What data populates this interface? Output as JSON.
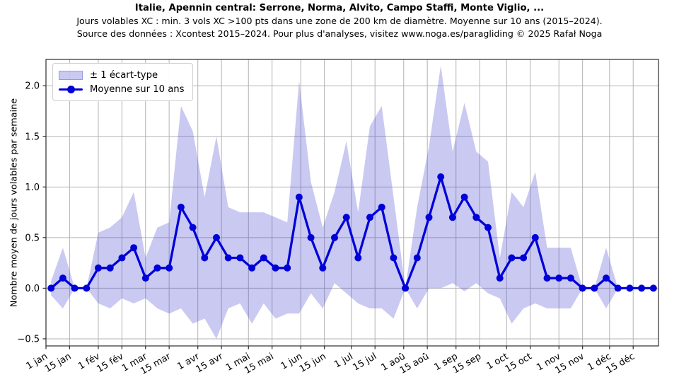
{
  "header": {
    "title": "Italie, Apennin central: Serrone, Norma, Alvito, Campo Staffi, Monte Viglio, ...",
    "subtitle_line1": "Jours volables XC : min. 3 vols XC >100 pts dans une zone de 200 km de diamètre. Moyenne sur 10 ans (2015–2024).",
    "subtitle_line2": "Source des données : Xcontest 2015–2024. Pour plus d'analyses, visitez www.noga.es/paragliding © 2025 Rafał Noga"
  },
  "chart_data": {
    "type": "line",
    "title": "Italie, Apennin central: Serrone, Norma, Alvito, Campo Staffi, Monte Viglio, ...",
    "xlabel": "",
    "ylabel": "Nombre moyen de jours volables par semaine",
    "legend": {
      "position": "upper left",
      "band_label": "± 1 écart-type",
      "line_label": "Moyenne sur 10 ans"
    },
    "grid": true,
    "ylim": [
      -0.57,
      2.26
    ],
    "xlim_days": [
      1,
      364
    ],
    "y_ticks": [
      -0.5,
      0.0,
      0.5,
      1.0,
      1.5,
      2.0
    ],
    "y_tick_labels": [
      "−0.5",
      "0.0",
      "0.5",
      "1.0",
      "1.5",
      "2.0"
    ],
    "x_ticks": [
      {
        "label": "1 jan",
        "day": 1
      },
      {
        "label": "15 jan",
        "day": 15
      },
      {
        "label": "1 fév",
        "day": 32
      },
      {
        "label": "15 fév",
        "day": 46
      },
      {
        "label": "1 mar",
        "day": 60
      },
      {
        "label": "15 mar",
        "day": 74
      },
      {
        "label": "1 avr",
        "day": 91
      },
      {
        "label": "15 avr",
        "day": 105
      },
      {
        "label": "1 mai",
        "day": 121
      },
      {
        "label": "15 mai",
        "day": 135
      },
      {
        "label": "1 jun",
        "day": 152
      },
      {
        "label": "15 jun",
        "day": 166
      },
      {
        "label": "1 jul",
        "day": 182
      },
      {
        "label": "15 jul",
        "day": 196
      },
      {
        "label": "1 aoû",
        "day": 213
      },
      {
        "label": "15 aoû",
        "day": 227
      },
      {
        "label": "1 sep",
        "day": 244
      },
      {
        "label": "15 sep",
        "day": 258
      },
      {
        "label": "1 oct",
        "day": 274
      },
      {
        "label": "15 oct",
        "day": 288
      },
      {
        "label": "1 nov",
        "day": 305
      },
      {
        "label": "15 nov",
        "day": 319
      },
      {
        "label": "1 déc",
        "day": 335
      },
      {
        "label": "15 déc",
        "day": 349
      }
    ],
    "week_start_day": 4,
    "week_step_days": 7,
    "series": [
      {
        "name": "Moyenne sur 10 ans",
        "type": "line+marker",
        "color": "#0000d8",
        "values": [
          0.0,
          0.1,
          0.0,
          0.0,
          0.2,
          0.2,
          0.3,
          0.4,
          0.1,
          0.2,
          0.2,
          0.8,
          0.6,
          0.3,
          0.5,
          0.3,
          0.3,
          0.2,
          0.3,
          0.2,
          0.2,
          0.9,
          0.5,
          0.2,
          0.5,
          0.7,
          0.3,
          0.7,
          0.8,
          0.3,
          0.0,
          0.3,
          0.7,
          1.1,
          0.7,
          0.9,
          0.7,
          0.6,
          0.1,
          0.3,
          0.3,
          0.5,
          0.1,
          0.1,
          0.1,
          0.0,
          0.0,
          0.1,
          0.0,
          0.0,
          0.0,
          0.0
        ]
      },
      {
        "name": "± 1 écart-type",
        "type": "band",
        "color": "#3c3cd2",
        "opacity": 0.28,
        "std": [
          0.07,
          0.3,
          0.0,
          0.0,
          0.35,
          0.4,
          0.4,
          0.55,
          0.2,
          0.4,
          0.45,
          1.0,
          0.95,
          0.6,
          1.0,
          0.5,
          0.45,
          0.55,
          0.45,
          0.5,
          0.45,
          1.15,
          0.55,
          0.4,
          0.45,
          0.75,
          0.45,
          0.9,
          1.0,
          0.6,
          0.0,
          0.5,
          0.7,
          1.1,
          0.65,
          0.93,
          0.65,
          0.65,
          0.2,
          0.65,
          0.5,
          0.65,
          0.3,
          0.3,
          0.3,
          0.0,
          0.0,
          0.3,
          0.0,
          0.0,
          0.0,
          0.0
        ]
      }
    ],
    "colors": {
      "line": "#0000d8",
      "band_fill": "#ccccf2",
      "grid": "#b3b3b3",
      "spine": "#2b2b2b",
      "background": "#ffffff"
    }
  }
}
